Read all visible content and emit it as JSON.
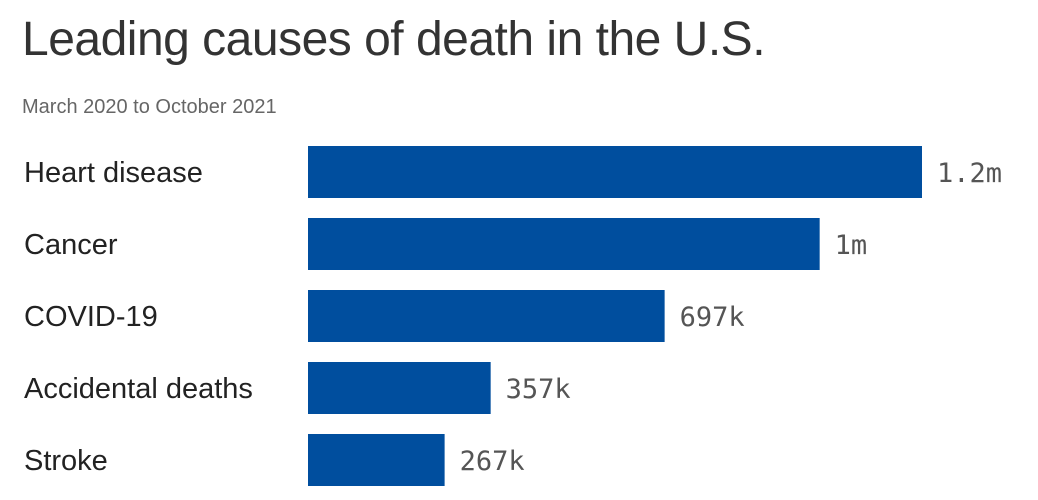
{
  "header": {
    "title": "Leading causes of death in the U.S.",
    "subtitle": "March 2020 to October 2021"
  },
  "colors": {
    "bar": "#004e9e",
    "title": "#333333",
    "subtitle": "#666666",
    "value_label": "#555555"
  },
  "chart_data": {
    "type": "bar",
    "orientation": "horizontal",
    "title": "Leading causes of death in the U.S.",
    "subtitle": "March 2020 to October 2021",
    "categories": [
      "Heart disease",
      "Cancer",
      "COVID-19",
      "Accidental deaths",
      "Stroke"
    ],
    "values": [
      1200000,
      1000000,
      697000,
      357000,
      267000
    ],
    "value_labels": [
      "1.2m",
      "1m",
      "697k",
      "357k",
      "267k"
    ],
    "xlim": [
      0,
      1200000
    ],
    "grid": false,
    "legend": "none"
  }
}
